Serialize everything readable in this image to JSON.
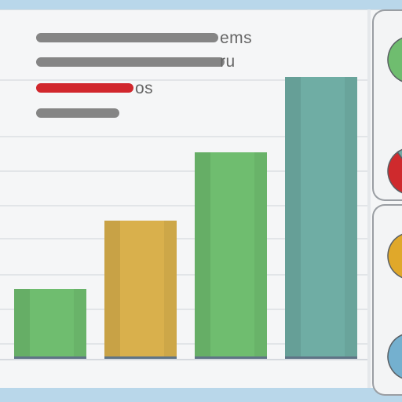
{
  "legend_labels": [
    "ems",
    "ru",
    "os",
    ""
  ],
  "legend_bars": [
    {
      "fill": 0.88,
      "color": "#858585"
    },
    {
      "fill": 0.88,
      "color": "#858585"
    },
    {
      "fill": 0.45,
      "color": "#d1272d"
    },
    {
      "fill": 0.42,
      "color": "#858585"
    }
  ],
  "chart_data": {
    "type": "bar",
    "categories": [
      "",
      "",
      "",
      ""
    ],
    "values": [
      30,
      59,
      88,
      120
    ],
    "colors": [
      "#6fbd6f",
      "#d9b04c",
      "#6fbd6f",
      "#6fada4"
    ],
    "grid": true
  },
  "side_pies": [
    {
      "slices": [
        0.7,
        0.3
      ],
      "colors": [
        "#6fbd6f",
        "#c8ccd0"
      ]
    },
    {
      "slices": [
        0.35,
        0.65
      ],
      "colors": [
        "#cf2a2d",
        "#6fa9a4"
      ]
    },
    {
      "slices": [
        0.55,
        0.45
      ],
      "colors": [
        "#e0a82a",
        "#a7602a"
      ]
    },
    {
      "slices": [
        0.5,
        0.5
      ],
      "colors": [
        "#74b0cf",
        "#6fbd6f"
      ]
    }
  ]
}
